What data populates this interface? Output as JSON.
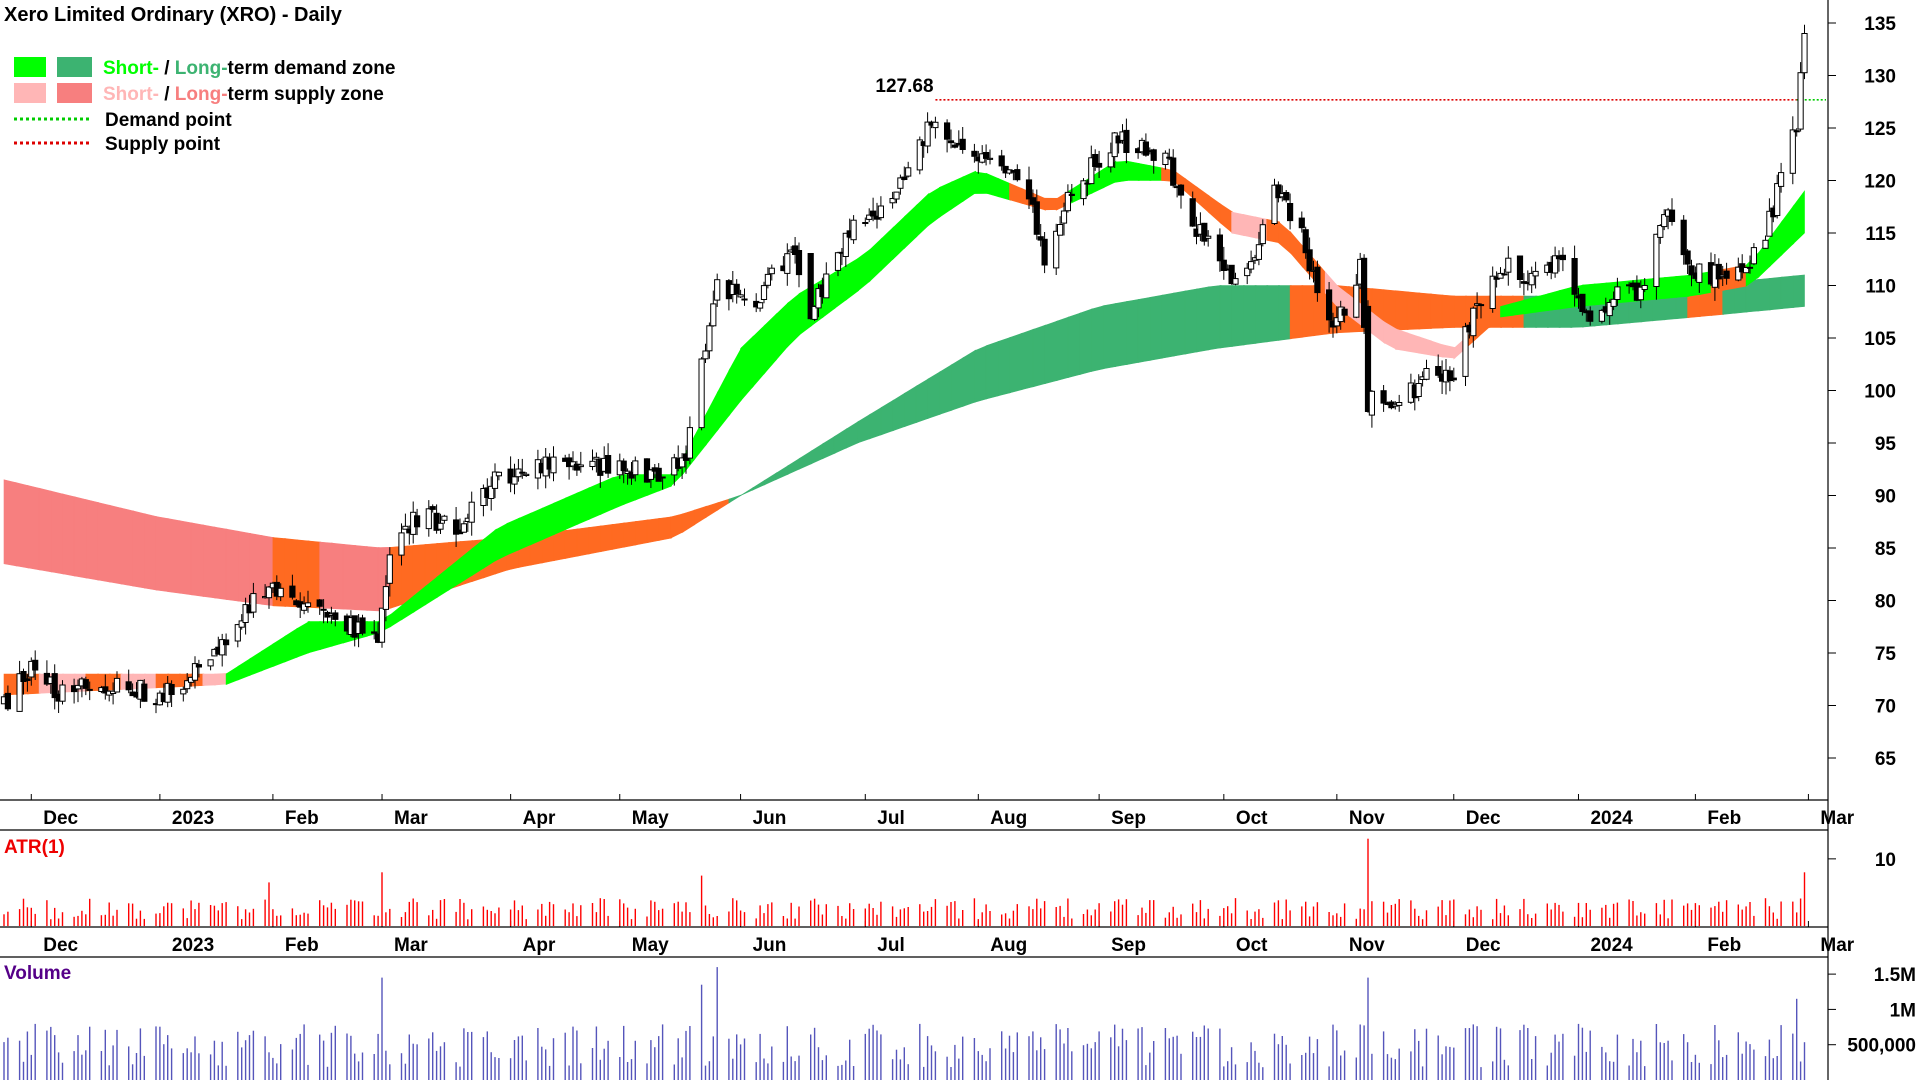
{
  "chart_data": {
    "type": "candlestick",
    "title": "Xero Limited Ordinary (XRO) - Daily",
    "legend": {
      "placement": "top-left",
      "demand_zone": {
        "short": "Short-",
        "sep": " / ",
        "long": "Long-",
        "rest": "term demand zone",
        "short_color": "#00ff00",
        "long_color": "#3cb371"
      },
      "supply_zone": {
        "short": "Short-",
        "sep": " / ",
        "long": "Long-",
        "rest": "term supply zone",
        "short_color": "#ffb6b6",
        "long_color": "#f77f7f"
      },
      "demand_point": "Demand point",
      "supply_point": "Supply point"
    },
    "colors": {
      "demand_short": "#00ff00",
      "demand_long": "#3cb371",
      "supply_short": "#ffb6b6",
      "supply_long": "#f77f7f",
      "transition": "#ff6a21",
      "demand_point": "#00cc00",
      "supply_point": "#dd0000",
      "atr": "#ff0000",
      "volume": "#5555bb",
      "atr_label": "#ee0000",
      "volume_label": "#550088"
    },
    "price_axis": {
      "ylim": [
        61,
        137
      ],
      "ticks": [
        65,
        70,
        75,
        80,
        85,
        90,
        95,
        100,
        105,
        110,
        115,
        120,
        125,
        130,
        135
      ]
    },
    "x_axis": {
      "start": "2022-11-24",
      "end": "2024-03-05",
      "labels": [
        {
          "date": "2022-12-01",
          "text": "Dec"
        },
        {
          "date": "2023-01-03",
          "text": "2023"
        },
        {
          "date": "2023-02-01",
          "text": "Feb"
        },
        {
          "date": "2023-03-01",
          "text": "Mar"
        },
        {
          "date": "2023-04-03",
          "text": "Apr"
        },
        {
          "date": "2023-05-01",
          "text": "May"
        },
        {
          "date": "2023-06-01",
          "text": "Jun"
        },
        {
          "date": "2023-07-03",
          "text": "Jul"
        },
        {
          "date": "2023-08-01",
          "text": "Aug"
        },
        {
          "date": "2023-09-01",
          "text": "Sep"
        },
        {
          "date": "2023-10-03",
          "text": "Oct"
        },
        {
          "date": "2023-11-01",
          "text": "Nov"
        },
        {
          "date": "2023-12-01",
          "text": "Dec"
        },
        {
          "date": "2024-01-02",
          "text": "2024"
        },
        {
          "date": "2024-02-01",
          "text": "Feb"
        },
        {
          "date": "2024-03-01",
          "text": "Mar"
        }
      ]
    },
    "annotations": [
      {
        "date": "2023-07-21",
        "value": 127.68,
        "text": "127.68"
      }
    ],
    "supply_point": {
      "from": "2023-07-21",
      "value": 127.68
    },
    "demand_point": {
      "from": "2024-02-27",
      "value": 127.68
    },
    "price_path": [
      [
        "2022-11-24",
        70
      ],
      [
        "2022-12-01",
        74
      ],
      [
        "2022-12-09",
        71
      ],
      [
        "2022-12-20",
        72
      ],
      [
        "2023-01-03",
        71
      ],
      [
        "2023-01-12",
        73
      ],
      [
        "2023-01-20",
        76
      ],
      [
        "2023-01-31",
        82
      ],
      [
        "2023-02-08",
        79
      ],
      [
        "2023-02-17",
        78
      ],
      [
        "2023-02-28",
        77
      ],
      [
        "2023-03-03",
        84
      ],
      [
        "2023-03-10",
        88
      ],
      [
        "2023-03-20",
        87
      ],
      [
        "2023-03-31",
        92
      ],
      [
        "2023-04-14",
        93
      ],
      [
        "2023-04-28",
        93
      ],
      [
        "2023-05-10",
        92
      ],
      [
        "2023-05-18",
        93
      ],
      [
        "2023-05-22",
        103
      ],
      [
        "2023-05-26",
        110
      ],
      [
        "2023-06-05",
        109
      ],
      [
        "2023-06-14",
        113
      ],
      [
        "2023-06-20",
        108
      ],
      [
        "2023-06-30",
        116
      ],
      [
        "2023-07-10",
        118
      ],
      [
        "2023-07-21",
        126
      ],
      [
        "2023-07-31",
        122
      ],
      [
        "2023-08-09",
        121
      ],
      [
        "2023-08-15",
        117
      ],
      [
        "2023-08-18",
        113
      ],
      [
        "2023-08-25",
        119
      ],
      [
        "2023-09-06",
        124
      ],
      [
        "2023-09-12",
        123
      ],
      [
        "2023-09-18",
        122
      ],
      [
        "2023-09-25",
        116
      ],
      [
        "2023-10-02",
        112
      ],
      [
        "2023-10-06",
        110
      ],
      [
        "2023-10-12",
        114
      ],
      [
        "2023-10-16",
        120
      ],
      [
        "2023-10-23",
        115
      ],
      [
        "2023-10-27",
        110
      ],
      [
        "2023-11-01",
        106
      ],
      [
        "2023-11-07",
        112
      ],
      [
        "2023-11-09",
        100
      ],
      [
        "2023-11-14",
        98
      ],
      [
        "2023-11-23",
        101
      ],
      [
        "2023-12-01",
        102
      ],
      [
        "2023-12-07",
        108
      ],
      [
        "2023-12-13",
        112
      ],
      [
        "2023-12-20",
        111
      ],
      [
        "2023-12-29",
        112
      ],
      [
        "2024-01-05",
        107
      ],
      [
        "2024-01-12",
        109
      ],
      [
        "2024-01-19",
        109
      ],
      [
        "2024-01-24",
        117
      ],
      [
        "2024-01-31",
        111
      ],
      [
        "2024-02-08",
        111
      ],
      [
        "2024-02-15",
        112
      ],
      [
        "2024-02-20",
        116
      ],
      [
        "2024-02-23",
        120
      ],
      [
        "2024-02-27",
        125
      ],
      [
        "2024-02-29",
        134
      ]
    ],
    "short_band": {
      "upper": [
        [
          "2022-11-24",
          73
        ],
        [
          "2023-01-20",
          73
        ],
        [
          "2023-02-10",
          78
        ],
        [
          "2023-03-01",
          78
        ],
        [
          "2023-03-31",
          87
        ],
        [
          "2023-05-01",
          92
        ],
        [
          "2023-05-15",
          92
        ],
        [
          "2023-06-01",
          104
        ],
        [
          "2023-06-15",
          109
        ],
        [
          "2023-07-03",
          113
        ],
        [
          "2023-07-20",
          119
        ],
        [
          "2023-08-01",
          121
        ],
        [
          "2023-08-20",
          118
        ],
        [
          "2023-09-06",
          122
        ],
        [
          "2023-09-20",
          121
        ],
        [
          "2023-10-05",
          117
        ],
        [
          "2023-10-18",
          116
        ],
        [
          "2023-11-01",
          110
        ],
        [
          "2023-11-15",
          106
        ],
        [
          "2023-12-01",
          104
        ],
        [
          "2023-12-13",
          108
        ],
        [
          "2024-01-02",
          110
        ],
        [
          "2024-01-31",
          111
        ],
        [
          "2024-02-15",
          112
        ],
        [
          "2024-02-29",
          119
        ]
      ],
      "lower": [
        [
          "2022-11-24",
          71
        ],
        [
          "2023-01-20",
          72
        ],
        [
          "2023-02-10",
          75
        ],
        [
          "2023-03-01",
          77
        ],
        [
          "2023-03-31",
          84
        ],
        [
          "2023-05-01",
          89
        ],
        [
          "2023-05-15",
          91
        ],
        [
          "2023-06-01",
          99
        ],
        [
          "2023-06-15",
          105
        ],
        [
          "2023-07-03",
          110
        ],
        [
          "2023-07-20",
          116
        ],
        [
          "2023-08-01",
          119
        ],
        [
          "2023-08-20",
          117
        ],
        [
          "2023-09-06",
          120
        ],
        [
          "2023-09-20",
          120
        ],
        [
          "2023-10-05",
          115
        ],
        [
          "2023-10-18",
          114
        ],
        [
          "2023-11-01",
          108
        ],
        [
          "2023-11-15",
          104
        ],
        [
          "2023-12-01",
          103
        ],
        [
          "2023-12-13",
          107
        ],
        [
          "2024-01-02",
          108
        ],
        [
          "2024-01-31",
          109
        ],
        [
          "2024-02-15",
          110
        ],
        [
          "2024-02-29",
          115
        ]
      ]
    },
    "long_band": {
      "upper": [
        [
          "2022-11-24",
          91.5
        ],
        [
          "2023-01-02",
          88
        ],
        [
          "2023-02-01",
          86
        ],
        [
          "2023-03-01",
          85
        ],
        [
          "2023-04-03",
          86
        ],
        [
          "2023-05-15",
          88
        ],
        [
          "2023-06-01",
          90
        ],
        [
          "2023-07-01",
          97
        ],
        [
          "2023-08-01",
          104
        ],
        [
          "2023-09-01",
          108
        ],
        [
          "2023-10-01",
          110
        ],
        [
          "2023-11-01",
          110
        ],
        [
          "2023-12-01",
          109
        ],
        [
          "2024-01-02",
          109
        ],
        [
          "2024-02-01",
          110
        ],
        [
          "2024-02-29",
          111
        ]
      ],
      "lower": [
        [
          "2022-11-24",
          83.5
        ],
        [
          "2023-01-02",
          81
        ],
        [
          "2023-02-01",
          79.5
        ],
        [
          "2023-03-01",
          79
        ],
        [
          "2023-04-03",
          83
        ],
        [
          "2023-05-15",
          86
        ],
        [
          "2023-06-01",
          90
        ],
        [
          "2023-07-01",
          95
        ],
        [
          "2023-08-01",
          99
        ],
        [
          "2023-09-01",
          102
        ],
        [
          "2023-10-01",
          104
        ],
        [
          "2023-11-01",
          105.5
        ],
        [
          "2023-12-01",
          106
        ],
        [
          "2024-01-02",
          106
        ],
        [
          "2024-02-01",
          107
        ],
        [
          "2024-02-29",
          108
        ]
      ]
    },
    "atr": {
      "label": "ATR(1)",
      "ticks": [
        10
      ],
      "ylim": [
        0,
        14
      ],
      "spikes": [
        [
          "2023-01-31",
          6.5
        ],
        [
          "2023-03-01",
          8
        ],
        [
          "2023-05-22",
          7.5
        ],
        [
          "2023-11-09",
          13
        ],
        [
          "2024-02-29",
          8
        ]
      ]
    },
    "volume": {
      "label": "Volume",
      "ticks": [
        {
          "value": 1500000,
          "text": "1.5M"
        },
        {
          "value": 1000000,
          "text": "1M"
        },
        {
          "value": 500000,
          "text": "500,000"
        }
      ],
      "ylim": [
        0,
        1700000
      ],
      "spikes": [
        [
          "2023-03-01",
          1450000
        ],
        [
          "2023-05-22",
          1350000
        ],
        [
          "2023-05-26",
          1600000
        ],
        [
          "2023-11-09",
          1450000
        ],
        [
          "2024-02-27",
          1150000
        ]
      ]
    }
  }
}
